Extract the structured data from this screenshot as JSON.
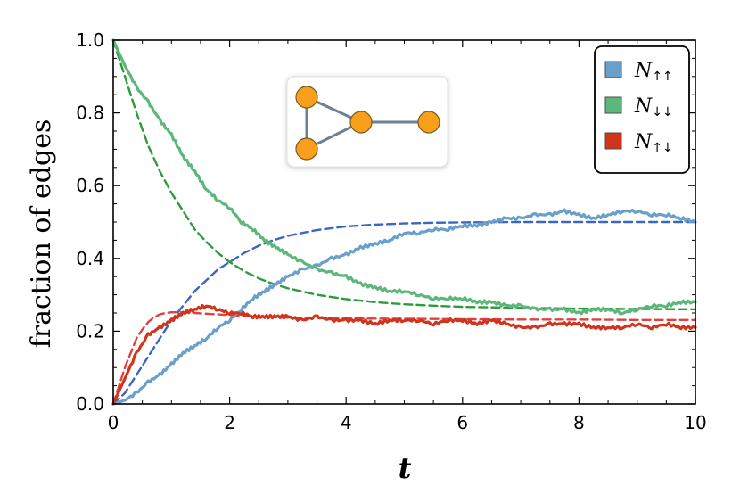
{
  "chart_data": {
    "type": "line",
    "title": "",
    "xlabel": "t",
    "ylabel": "fraction of edges",
    "xlim": [
      0,
      10
    ],
    "ylim": [
      0,
      1
    ],
    "xticks": [
      0,
      2,
      4,
      6,
      8,
      10
    ],
    "yticks": [
      0.0,
      0.2,
      0.4,
      0.6,
      0.8,
      1.0
    ],
    "xtick_labels": [
      "0",
      "2",
      "4",
      "6",
      "8",
      "10"
    ],
    "ytick_labels": [
      "0.0",
      "0.2",
      "0.4",
      "0.6",
      "0.8",
      "1.0"
    ],
    "legend_position": "top-right",
    "series": [
      {
        "name": "N↑↑",
        "legend_base": "N",
        "legend_sub": "↑↑",
        "color": "#6a9fcc",
        "style": "solid",
        "x": [
          0,
          0.2,
          0.4,
          0.6,
          0.8,
          1.0,
          1.2,
          1.4,
          1.6,
          1.8,
          2.0,
          2.2,
          2.4,
          2.6,
          2.8,
          3.0,
          3.25,
          3.5,
          3.75,
          4.0,
          4.25,
          4.5,
          4.75,
          5.0,
          5.25,
          5.5,
          5.75,
          6.0,
          6.25,
          6.5,
          6.75,
          7.0,
          7.25,
          7.5,
          7.75,
          8.0,
          8.25,
          8.5,
          8.75,
          9.0,
          9.25,
          9.5,
          9.75,
          10.0
        ],
        "y": [
          0.0,
          0.01,
          0.03,
          0.06,
          0.08,
          0.11,
          0.14,
          0.16,
          0.18,
          0.21,
          0.23,
          0.26,
          0.29,
          0.31,
          0.33,
          0.35,
          0.37,
          0.38,
          0.4,
          0.41,
          0.43,
          0.44,
          0.45,
          0.47,
          0.47,
          0.48,
          0.48,
          0.49,
          0.49,
          0.5,
          0.51,
          0.51,
          0.52,
          0.52,
          0.53,
          0.52,
          0.51,
          0.52,
          0.53,
          0.53,
          0.52,
          0.52,
          0.51,
          0.5
        ]
      },
      {
        "name": "N↓↓",
        "legend_base": "N",
        "legend_sub": "↓↓",
        "color": "#5cb87a",
        "style": "solid",
        "x": [
          0,
          0.2,
          0.4,
          0.6,
          0.8,
          1.0,
          1.2,
          1.4,
          1.6,
          1.8,
          2.0,
          2.2,
          2.4,
          2.6,
          2.8,
          3.0,
          3.25,
          3.5,
          3.75,
          4.0,
          4.25,
          4.5,
          4.75,
          5.0,
          5.25,
          5.5,
          5.75,
          6.0,
          6.25,
          6.5,
          6.75,
          7.0,
          7.25,
          7.5,
          7.75,
          8.0,
          8.25,
          8.5,
          8.75,
          9.0,
          9.25,
          9.5,
          9.75,
          10.0
        ],
        "y": [
          1.0,
          0.93,
          0.87,
          0.83,
          0.78,
          0.74,
          0.68,
          0.64,
          0.59,
          0.56,
          0.54,
          0.5,
          0.48,
          0.45,
          0.43,
          0.41,
          0.39,
          0.37,
          0.36,
          0.35,
          0.33,
          0.32,
          0.31,
          0.31,
          0.3,
          0.29,
          0.29,
          0.29,
          0.28,
          0.28,
          0.27,
          0.27,
          0.26,
          0.26,
          0.26,
          0.25,
          0.26,
          0.26,
          0.25,
          0.26,
          0.27,
          0.27,
          0.28,
          0.28
        ]
      },
      {
        "name": "N↑↓",
        "legend_base": "N",
        "legend_sub": "↑↓",
        "color": "#d1341c",
        "style": "solid",
        "x": [
          0,
          0.2,
          0.4,
          0.6,
          0.8,
          1.0,
          1.2,
          1.4,
          1.6,
          1.8,
          2.0,
          2.2,
          2.4,
          2.6,
          2.8,
          3.0,
          3.25,
          3.5,
          3.75,
          4.0,
          4.25,
          4.5,
          4.75,
          5.0,
          5.25,
          5.5,
          5.75,
          6.0,
          6.25,
          6.5,
          6.75,
          7.0,
          7.25,
          7.5,
          7.75,
          8.0,
          8.25,
          8.5,
          8.75,
          9.0,
          9.25,
          9.5,
          9.75,
          10.0
        ],
        "y": [
          0.0,
          0.07,
          0.14,
          0.19,
          0.21,
          0.23,
          0.25,
          0.26,
          0.27,
          0.26,
          0.25,
          0.25,
          0.24,
          0.24,
          0.24,
          0.24,
          0.23,
          0.24,
          0.23,
          0.23,
          0.23,
          0.22,
          0.23,
          0.23,
          0.23,
          0.22,
          0.23,
          0.23,
          0.22,
          0.23,
          0.22,
          0.21,
          0.21,
          0.22,
          0.22,
          0.22,
          0.21,
          0.21,
          0.21,
          0.22,
          0.21,
          0.22,
          0.21,
          0.21
        ]
      },
      {
        "name": "N↑↑ theory",
        "color": "#3a67c2",
        "style": "dashed",
        "x": [
          0,
          0.2,
          0.4,
          0.6,
          0.8,
          1.0,
          1.2,
          1.4,
          1.6,
          1.8,
          2.0,
          2.25,
          2.5,
          2.75,
          3.0,
          3.5,
          4.0,
          4.5,
          5.0,
          5.5,
          6.0,
          7.0,
          8.0,
          9.0,
          10.0
        ],
        "y": [
          0.0,
          0.03,
          0.08,
          0.13,
          0.18,
          0.23,
          0.27,
          0.31,
          0.34,
          0.37,
          0.39,
          0.415,
          0.435,
          0.45,
          0.462,
          0.478,
          0.488,
          0.493,
          0.496,
          0.498,
          0.499,
          0.5,
          0.5,
          0.5,
          0.5
        ]
      },
      {
        "name": "N↓↓ theory",
        "color": "#2d9a3e",
        "style": "dashed",
        "x": [
          0,
          0.2,
          0.4,
          0.6,
          0.8,
          1.0,
          1.2,
          1.4,
          1.6,
          1.8,
          2.0,
          2.25,
          2.5,
          2.75,
          3.0,
          3.5,
          4.0,
          4.5,
          5.0,
          5.5,
          6.0,
          7.0,
          8.0,
          9.0,
          10.0
        ],
        "y": [
          1.0,
          0.9,
          0.8,
          0.71,
          0.64,
          0.58,
          0.53,
          0.48,
          0.445,
          0.415,
          0.39,
          0.365,
          0.345,
          0.33,
          0.318,
          0.3,
          0.288,
          0.28,
          0.274,
          0.27,
          0.267,
          0.264,
          0.262,
          0.261,
          0.26
        ]
      },
      {
        "name": "N↑↓ theory",
        "color": "#e04040",
        "style": "dashed",
        "x": [
          0,
          0.1,
          0.2,
          0.3,
          0.4,
          0.5,
          0.6,
          0.7,
          0.8,
          0.9,
          1.0,
          1.2,
          1.4,
          1.6,
          1.8,
          2.0,
          2.5,
          3.0,
          4.0,
          5.0,
          6.0,
          7.0,
          8.0,
          9.0,
          10.0
        ],
        "y": [
          0.0,
          0.05,
          0.1,
          0.14,
          0.18,
          0.205,
          0.225,
          0.238,
          0.246,
          0.25,
          0.252,
          0.252,
          0.25,
          0.248,
          0.246,
          0.244,
          0.24,
          0.237,
          0.235,
          0.234,
          0.233,
          0.232,
          0.232,
          0.231,
          0.231
        ]
      }
    ],
    "inset": {
      "description_nodes": 4,
      "node_color": "#f8a01c",
      "edge_color": "#6b7f95"
    }
  }
}
